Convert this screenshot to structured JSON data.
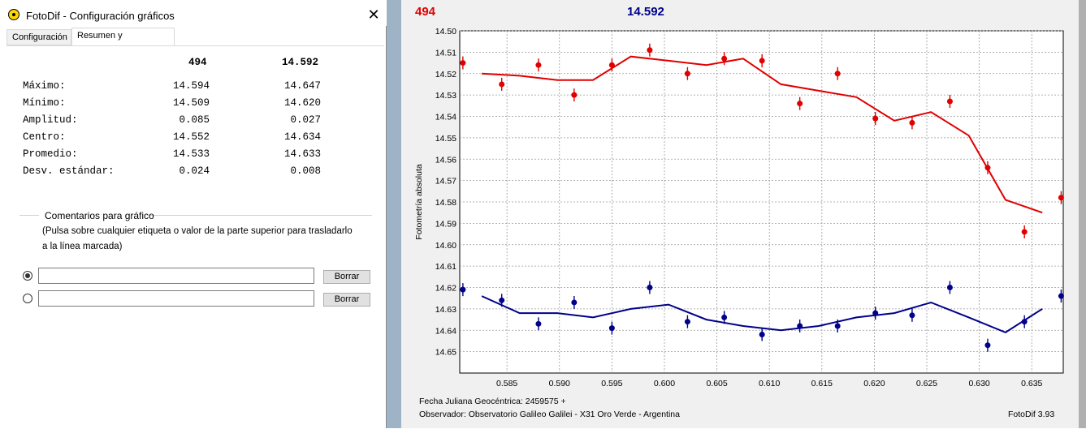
{
  "window": {
    "title": "FotoDif - Configuración gráficos",
    "close_symbol": "✕"
  },
  "tabs": [
    {
      "label": "Configuración",
      "active": false
    },
    {
      "label": "Resumen y comentarios",
      "active": true
    }
  ],
  "summary": {
    "col1_header": "494",
    "col2_header": "14.592",
    "rows": [
      {
        "label": "Máximo:",
        "v1": "14.594",
        "v2": "14.647"
      },
      {
        "label": "Mínimo:",
        "v1": "14.509",
        "v2": "14.620"
      },
      {
        "label": "Amplitud:",
        "v1": "0.085",
        "v2": "0.027"
      },
      {
        "label": "Centro:",
        "v1": "14.552",
        "v2": "14.634"
      },
      {
        "label": "Promedio:",
        "v1": "14.533",
        "v2": "14.633"
      },
      {
        "label": "Desv. estándar:",
        "v1": "0.024",
        "v2": "0.008"
      }
    ]
  },
  "comments": {
    "section_title": "Comentarios para gráfico",
    "hint_line1": "(Pulsa sobre cualquier etiqueta o valor de la parte superior para trasladarlo",
    "hint_line2": "a la línea marcada)",
    "fields": [
      {
        "value": "",
        "selected": true,
        "button": "Borrar"
      },
      {
        "value": "",
        "selected": false,
        "button": "Borrar"
      }
    ]
  },
  "chart_header": {
    "left": "494",
    "right": "14.592"
  },
  "chart_footer": {
    "line1": "Fecha Juliana Geocéntrica: 2459575 +",
    "line2": "Observador: Observatorio Galileo Galilei - X31 Oro Verde - Argentina",
    "version": "FotoDif 3.93"
  },
  "chart_data": {
    "type": "scatter",
    "ylabel": "Fotometría absoluta",
    "xlim": [
      0.5805,
      0.638
    ],
    "ylim": [
      14.5,
      14.66
    ],
    "y_inverted": true,
    "grid": true,
    "x_ticks": [
      "0.585",
      "0.590",
      "0.595",
      "0.600",
      "0.605",
      "0.610",
      "0.615",
      "0.620",
      "0.625",
      "0.630",
      "0.635"
    ],
    "y_ticks": [
      "14.50",
      "14.51",
      "14.52",
      "14.53",
      "14.54",
      "14.55",
      "14.56",
      "14.57",
      "14.58",
      "14.59",
      "14.60",
      "14.61",
      "14.62",
      "14.63",
      "14.64",
      "14.65"
    ],
    "colors": {
      "series1": "#e00000",
      "series2": "#00008b"
    },
    "series": [
      {
        "name": "494",
        "points": [
          {
            "x": 0.5808,
            "y": 14.515
          },
          {
            "x": 0.5845,
            "y": 14.525
          },
          {
            "x": 0.588,
            "y": 14.516
          },
          {
            "x": 0.5914,
            "y": 14.53
          },
          {
            "x": 0.595,
            "y": 14.516
          },
          {
            "x": 0.5986,
            "y": 14.509
          },
          {
            "x": 0.6022,
            "y": 14.52
          },
          {
            "x": 0.6057,
            "y": 14.513
          },
          {
            "x": 0.6093,
            "y": 14.514
          },
          {
            "x": 0.6129,
            "y": 14.534
          },
          {
            "x": 0.6165,
            "y": 14.52
          },
          {
            "x": 0.6201,
            "y": 14.541
          },
          {
            "x": 0.6236,
            "y": 14.543
          },
          {
            "x": 0.6272,
            "y": 14.533
          },
          {
            "x": 0.6308,
            "y": 14.564
          },
          {
            "x": 0.6343,
            "y": 14.594
          },
          {
            "x": 0.6378,
            "y": 14.578
          }
        ],
        "fit": [
          {
            "x": 0.5826,
            "y": 14.52
          },
          {
            "x": 0.5862,
            "y": 14.521
          },
          {
            "x": 0.5898,
            "y": 14.523
          },
          {
            "x": 0.5932,
            "y": 14.523
          },
          {
            "x": 0.5968,
            "y": 14.512
          },
          {
            "x": 0.6004,
            "y": 14.514
          },
          {
            "x": 0.604,
            "y": 14.516
          },
          {
            "x": 0.6075,
            "y": 14.513
          },
          {
            "x": 0.6111,
            "y": 14.525
          },
          {
            "x": 0.6147,
            "y": 14.528
          },
          {
            "x": 0.6183,
            "y": 14.531
          },
          {
            "x": 0.6219,
            "y": 14.542
          },
          {
            "x": 0.6254,
            "y": 14.538
          },
          {
            "x": 0.629,
            "y": 14.549
          },
          {
            "x": 0.6325,
            "y": 14.579
          },
          {
            "x": 0.636,
            "y": 14.585
          }
        ]
      },
      {
        "name": "14.592",
        "points": [
          {
            "x": 0.5808,
            "y": 14.621
          },
          {
            "x": 0.5845,
            "y": 14.626
          },
          {
            "x": 0.588,
            "y": 14.637
          },
          {
            "x": 0.5914,
            "y": 14.627
          },
          {
            "x": 0.595,
            "y": 14.639
          },
          {
            "x": 0.5986,
            "y": 14.62
          },
          {
            "x": 0.6022,
            "y": 14.636
          },
          {
            "x": 0.6057,
            "y": 14.634
          },
          {
            "x": 0.6093,
            "y": 14.642
          },
          {
            "x": 0.6129,
            "y": 14.638
          },
          {
            "x": 0.6165,
            "y": 14.638
          },
          {
            "x": 0.6201,
            "y": 14.632
          },
          {
            "x": 0.6236,
            "y": 14.633
          },
          {
            "x": 0.6272,
            "y": 14.62
          },
          {
            "x": 0.6308,
            "y": 14.647
          },
          {
            "x": 0.6343,
            "y": 14.636
          },
          {
            "x": 0.6378,
            "y": 14.624
          }
        ],
        "fit": [
          {
            "x": 0.5826,
            "y": 14.624
          },
          {
            "x": 0.5862,
            "y": 14.632
          },
          {
            "x": 0.5898,
            "y": 14.632
          },
          {
            "x": 0.5932,
            "y": 14.634
          },
          {
            "x": 0.5968,
            "y": 14.63
          },
          {
            "x": 0.6004,
            "y": 14.628
          },
          {
            "x": 0.604,
            "y": 14.635
          },
          {
            "x": 0.6075,
            "y": 14.638
          },
          {
            "x": 0.6111,
            "y": 14.64
          },
          {
            "x": 0.6147,
            "y": 14.638
          },
          {
            "x": 0.6183,
            "y": 14.634
          },
          {
            "x": 0.6219,
            "y": 14.632
          },
          {
            "x": 0.6254,
            "y": 14.627
          },
          {
            "x": 0.629,
            "y": 14.634
          },
          {
            "x": 0.6325,
            "y": 14.641
          },
          {
            "x": 0.636,
            "y": 14.63
          }
        ]
      }
    ]
  }
}
